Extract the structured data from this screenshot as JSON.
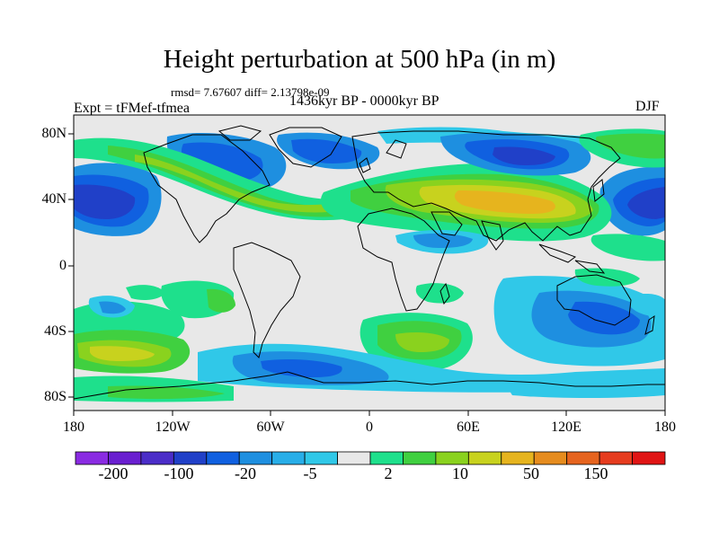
{
  "title": "Height perturbation at 500 hPa (in m)",
  "stats_line": "rmsd= 7.67607 diff= 2.13798e-09",
  "period": "1436kyr BP - 0000kyr BP",
  "experiment": "Expt = tFMef-tfmea",
  "season": "DJF",
  "latitude_labels": [
    "80N",
    "40N",
    "0",
    "40S",
    "80S"
  ],
  "longitude_labels": [
    "180",
    "120W",
    "60W",
    "0",
    "60E",
    "120E",
    "180"
  ],
  "colorbar": {
    "colors": [
      "#8a2be2",
      "#6a1fd0",
      "#4b2dc8",
      "#2040c8",
      "#1060e0",
      "#1e8fe0",
      "#28aee8",
      "#30c8e8",
      "#e8e8e8",
      "#1ee08c",
      "#40d040",
      "#8ad21e",
      "#c8d21e",
      "#e6b41e",
      "#e68c1e",
      "#e6641e",
      "#e63c1e",
      "#e01414"
    ],
    "labels": [
      "-200",
      "-100",
      "-20",
      "-5",
      "2",
      "10",
      "50",
      "150"
    ]
  },
  "field_palette": {
    "neg_strong": "#2040c8",
    "neg_mid": "#1060e0",
    "neg_light": "#1e8fe0",
    "neg_lighter": "#28aee8",
    "neg_faint": "#30c8e8",
    "zero": "#e8e8e8",
    "pos_faint": "#1ee08c",
    "pos_light": "#40d040",
    "pos_mid": "#8ad21e",
    "pos_strong": "#c8d21e",
    "pos_max": "#e6b41e"
  }
}
